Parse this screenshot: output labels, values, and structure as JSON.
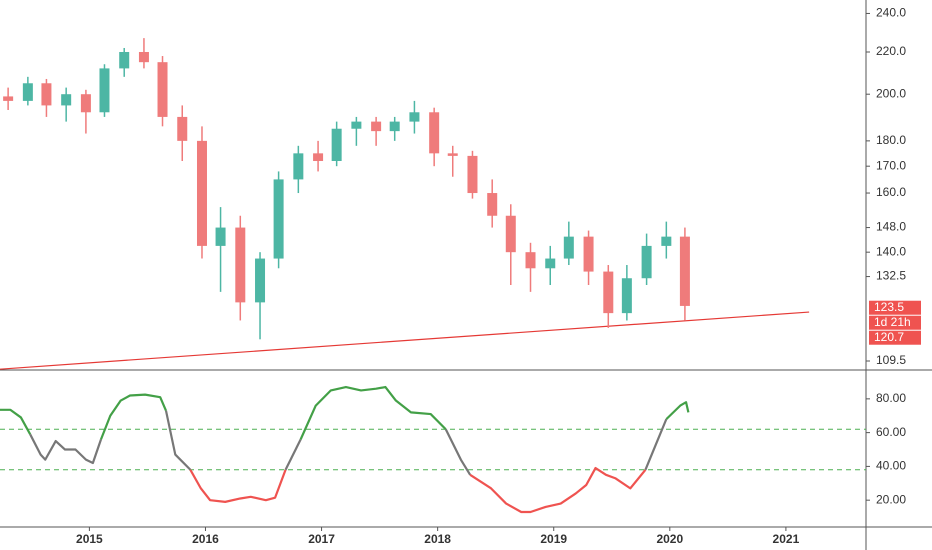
{
  "chart_data": [
    {
      "type": "candlestick",
      "log_scale": true,
      "xlim": [
        2014.23,
        2021.69
      ],
      "ylim": [
        107.3,
        247.4
      ],
      "x": [
        2014.3,
        2014.47,
        2014.63,
        2014.8,
        2014.97,
        2015.13,
        2015.3,
        2015.47,
        2015.63,
        2015.8,
        2015.97,
        2016.13,
        2016.3,
        2016.47,
        2016.63,
        2016.8,
        2016.97,
        2017.13,
        2017.3,
        2017.47,
        2017.63,
        2017.8,
        2017.97,
        2018.13,
        2018.3,
        2018.47,
        2018.63,
        2018.8,
        2018.97,
        2019.13,
        2019.3,
        2019.47,
        2019.63,
        2019.8,
        2019.97,
        2020.13
      ],
      "open": [
        199,
        197,
        205,
        195,
        200,
        192,
        212,
        220,
        215,
        190,
        180,
        142,
        148,
        125,
        138,
        165,
        175,
        172,
        185,
        188,
        184,
        188,
        192,
        175,
        174,
        160,
        152,
        140,
        135,
        138,
        145,
        134,
        122,
        132,
        142,
        145
      ],
      "high": [
        203,
        208,
        207,
        203,
        202,
        214,
        222,
        227,
        218,
        195,
        186,
        155,
        152,
        140,
        168,
        178,
        180,
        188,
        190,
        190,
        190,
        197,
        194,
        178,
        176,
        165,
        156,
        143,
        142,
        150,
        147,
        136,
        136,
        146,
        150,
        148
      ],
      "low": [
        193,
        195,
        190,
        188,
        183,
        190,
        208,
        212,
        186,
        172,
        138,
        128,
        120,
        115,
        135,
        160,
        168,
        170,
        178,
        178,
        180,
        183,
        170,
        166,
        158,
        148,
        130,
        128,
        130,
        136,
        130,
        118,
        120,
        130,
        138,
        120
      ],
      "close": [
        197,
        205,
        195,
        200,
        192,
        212,
        220,
        215,
        190,
        180,
        142,
        148,
        125,
        138,
        165,
        175,
        172,
        185,
        188,
        184,
        188,
        192,
        175,
        174,
        160,
        152,
        140,
        135,
        138,
        145,
        134,
        122,
        132,
        142,
        145,
        124
      ],
      "up_color": "#4db6a4",
      "down_color": "#ef7b7b",
      "yticks": [
        {
          "value": 240,
          "label": "240.0"
        },
        {
          "value": 220,
          "label": "220.0"
        },
        {
          "value": 200,
          "label": "200.0"
        },
        {
          "value": 180,
          "label": "180.0"
        },
        {
          "value": 170,
          "label": "170.0"
        },
        {
          "value": 160,
          "label": "160.0"
        },
        {
          "value": 148,
          "label": "148.0"
        },
        {
          "value": 140,
          "label": "140.0"
        },
        {
          "value": 132.5,
          "label": "132.5"
        },
        {
          "value": 109.5,
          "label": "109.5"
        }
      ],
      "trendline": {
        "x": [
          2014.23,
          2021.2
        ],
        "values": [
          107.5,
          122.3
        ],
        "color": "#e53935"
      },
      "last_price": {
        "value": 123.5,
        "label": "123.5"
      },
      "countdown": "1d 21h",
      "trendline_price": {
        "value": 120.7,
        "label": "120.7"
      },
      "label_color": "#ef5350"
    },
    {
      "type": "line",
      "xlim": [
        2014.23,
        2021.69
      ],
      "ylim": [
        5.3,
        95.9
      ],
      "xticks": [
        2015,
        2016,
        2017,
        2018,
        2019,
        2020,
        2021
      ],
      "yticks": [
        {
          "value": 80,
          "label": "80.00"
        },
        {
          "value": 60,
          "label": "60.00"
        },
        {
          "value": 40,
          "label": "40.00"
        },
        {
          "value": 20,
          "label": "20.00"
        }
      ],
      "levels": [
        62,
        38
      ],
      "level_color": "#4caf50",
      "upper_color": "#43a047",
      "lower_color": "#ef5350",
      "mid_color": "#777777",
      "x": [
        2014.23,
        2014.32,
        2014.41,
        2014.49,
        2014.58,
        2014.62,
        2014.71,
        2014.79,
        2014.88,
        2014.97,
        2015.03,
        2015.1,
        2015.18,
        2015.27,
        2015.35,
        2015.48,
        2015.61,
        2015.66,
        2015.74,
        2015.87,
        2015.96,
        2016.04,
        2016.17,
        2016.3,
        2016.39,
        2016.52,
        2016.6,
        2016.69,
        2016.82,
        2016.95,
        2017.08,
        2017.21,
        2017.34,
        2017.47,
        2017.55,
        2017.64,
        2017.77,
        2017.94,
        2018.07,
        2018.2,
        2018.28,
        2018.46,
        2018.59,
        2018.72,
        2018.8,
        2018.93,
        2019.06,
        2019.19,
        2019.28,
        2019.36,
        2019.45,
        2019.53,
        2019.66,
        2019.79,
        2019.88,
        2019.97,
        2020.09,
        2020.14,
        2020.16
      ],
      "values": [
        73.5,
        73.5,
        69,
        59,
        47,
        44,
        55,
        50,
        50,
        44,
        42,
        56,
        70,
        79,
        82,
        82.5,
        81,
        73,
        47,
        38,
        27,
        20,
        19,
        21,
        22,
        20,
        21.5,
        38,
        56,
        76,
        85,
        87,
        85,
        86,
        87,
        79,
        72,
        71,
        62,
        44,
        35,
        27,
        18,
        13,
        13,
        16,
        18,
        24,
        29,
        39,
        35,
        33,
        27,
        38,
        53,
        68,
        76,
        78,
        72
      ]
    }
  ]
}
